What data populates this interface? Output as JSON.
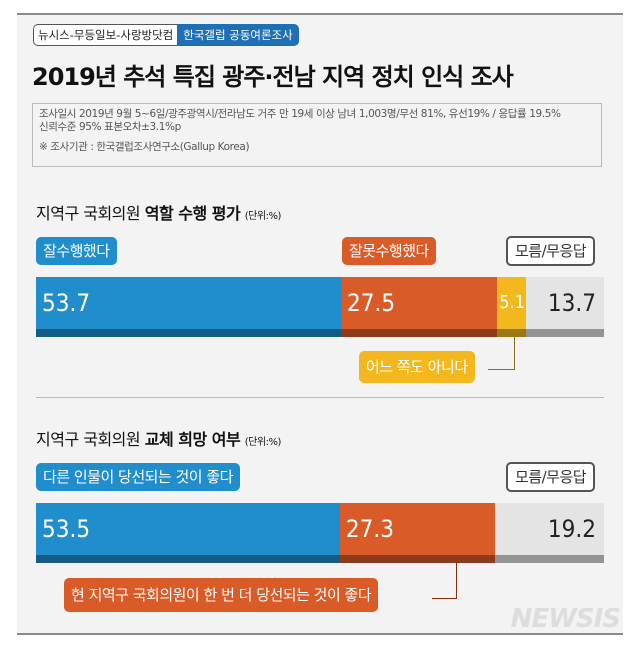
{
  "header": {
    "tag_left": "뉴시스-무등일보-사랑방닷컴",
    "tag_right": "한국갤럽 공동여론조사",
    "title": "2019년 추석 특집 광주·전남 지역 정치 인식 조사",
    "info_line1": "조사일시 2019년 9월 5~6일/광주광역시/전라남도 거주 만 19세 이상 남녀 1,003명/무선 81%, 유선19% / 응답률 19.5%",
    "info_line2": "신뢰수준 95% 표본오차±3.1%p",
    "source": "※ 조사기관 : 한국갤럽조사연구소(Gallup Korea)"
  },
  "watermark": "NEWSIS",
  "chart_data": [
    {
      "type": "bar",
      "stacked": true,
      "title_prefix": "지역구 국회의원 ",
      "title_bold": "역할 수행 평가",
      "unit": "(단위:%)",
      "segments": [
        {
          "name": "잘수행했다",
          "value": 53.7,
          "color": "#208dcc"
        },
        {
          "name": "잘못수행했다",
          "value": 27.5,
          "color": "#d95b28"
        },
        {
          "name": "어느 쪽도 아니다",
          "value": 5.1,
          "color": "#f2b81d"
        },
        {
          "name": "모름/무응답",
          "value": 13.7,
          "color": "#e4e4e4"
        }
      ]
    },
    {
      "type": "bar",
      "stacked": true,
      "title_prefix": "지역구 국회의원 ",
      "title_bold": "교체 희망 여부",
      "unit": "(단위:%)",
      "segments": [
        {
          "name": "다른 인물이 당선되는 것이 좋다",
          "value": 53.5,
          "color": "#208dcc"
        },
        {
          "name": "현 지역구 국회의원이 한 번 더 당선되는 것이 좋다",
          "value": 27.3,
          "color": "#d95b28"
        },
        {
          "name": "모름/무응답",
          "value": 19.2,
          "color": "#e4e4e4"
        }
      ]
    }
  ]
}
